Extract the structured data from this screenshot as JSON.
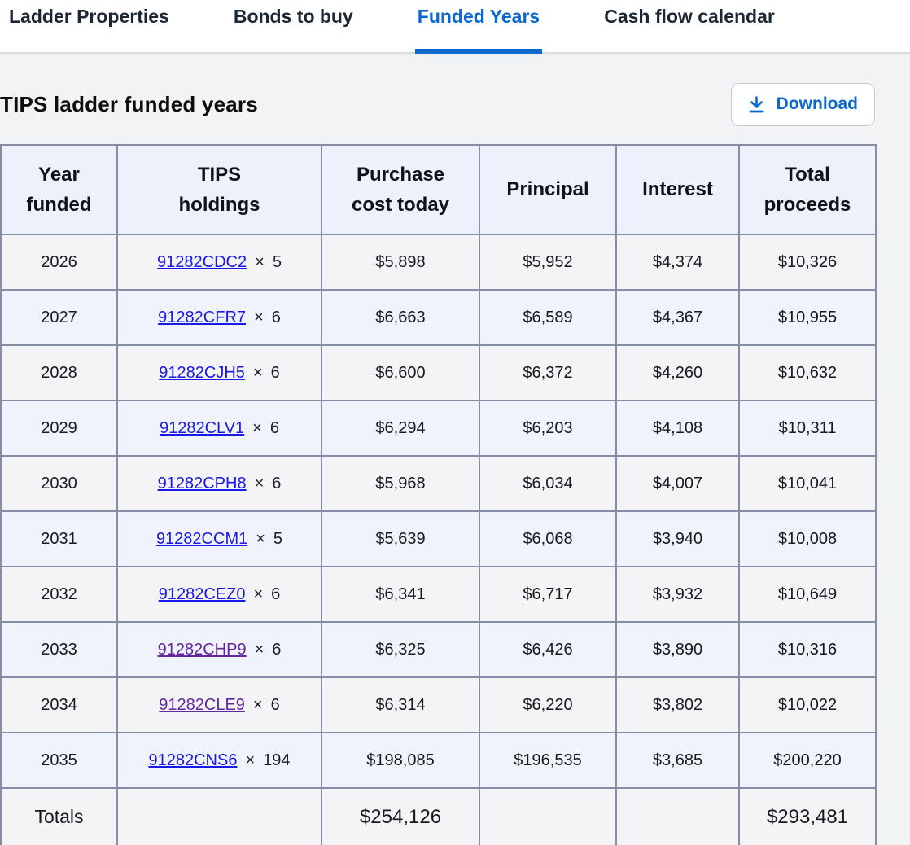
{
  "tabs": [
    {
      "label": "Ladder Properties",
      "active": false
    },
    {
      "label": "Bonds to buy",
      "active": false
    },
    {
      "label": "Funded Years",
      "active": true
    },
    {
      "label": "Cash flow calendar",
      "active": false
    }
  ],
  "section": {
    "title": "TIPS ladder funded years",
    "download_label": "Download"
  },
  "table": {
    "columns": [
      {
        "label": "Year\nfunded"
      },
      {
        "label": "TIPS\nholdings"
      },
      {
        "label": "Purchase\ncost today"
      },
      {
        "label": "Principal"
      },
      {
        "label": "Interest"
      },
      {
        "label": "Total\nproceeds"
      }
    ],
    "rows": [
      {
        "year": "2026",
        "cusip": "91282CDC2",
        "times": "×",
        "qty": "5",
        "visited": false,
        "purchase": "$5,898",
        "principal": "$5,952",
        "interest": "$4,374",
        "total": "$10,326"
      },
      {
        "year": "2027",
        "cusip": "91282CFR7",
        "times": "×",
        "qty": "6",
        "visited": false,
        "purchase": "$6,663",
        "principal": "$6,589",
        "interest": "$4,367",
        "total": "$10,955"
      },
      {
        "year": "2028",
        "cusip": "91282CJH5",
        "times": "×",
        "qty": "6",
        "visited": false,
        "purchase": "$6,600",
        "principal": "$6,372",
        "interest": "$4,260",
        "total": "$10,632"
      },
      {
        "year": "2029",
        "cusip": "91282CLV1",
        "times": "×",
        "qty": "6",
        "visited": false,
        "purchase": "$6,294",
        "principal": "$6,203",
        "interest": "$4,108",
        "total": "$10,311"
      },
      {
        "year": "2030",
        "cusip": "91282CPH8",
        "times": "×",
        "qty": "6",
        "visited": false,
        "purchase": "$5,968",
        "principal": "$6,034",
        "interest": "$4,007",
        "total": "$10,041"
      },
      {
        "year": "2031",
        "cusip": "91282CCM1",
        "times": "×",
        "qty": "5",
        "visited": false,
        "purchase": "$5,639",
        "principal": "$6,068",
        "interest": "$3,940",
        "total": "$10,008"
      },
      {
        "year": "2032",
        "cusip": "91282CEZ0",
        "times": "×",
        "qty": "6",
        "visited": false,
        "purchase": "$6,341",
        "principal": "$6,717",
        "interest": "$3,932",
        "total": "$10,649"
      },
      {
        "year": "2033",
        "cusip": "91282CHP9",
        "times": "×",
        "qty": "6",
        "visited": true,
        "purchase": "$6,325",
        "principal": "$6,426",
        "interest": "$3,890",
        "total": "$10,316"
      },
      {
        "year": "2034",
        "cusip": "91282CLE9",
        "times": "×",
        "qty": "6",
        "visited": true,
        "purchase": "$6,314",
        "principal": "$6,220",
        "interest": "$3,802",
        "total": "$10,022"
      },
      {
        "year": "2035",
        "cusip": "91282CNS6",
        "times": "×",
        "qty": "194",
        "visited": false,
        "purchase": "$198,085",
        "principal": "$196,535",
        "interest": "$3,685",
        "total": "$200,220"
      }
    ],
    "totals": {
      "label": "Totals",
      "purchase": "$254,126",
      "total": "$293,481"
    }
  },
  "colors": {
    "accent_blue": "#0b68cf",
    "tab_inactive": "#1c2733",
    "link_blue": "#1a18e4",
    "link_visited_purple": "#6327a2",
    "table_border": "#868da6",
    "header_bg": "#edf1fb",
    "row_gray_bg": "#f4f4f6",
    "row_blue_bg": "#f0f3fc",
    "page_bg": "#f2f3f5"
  }
}
